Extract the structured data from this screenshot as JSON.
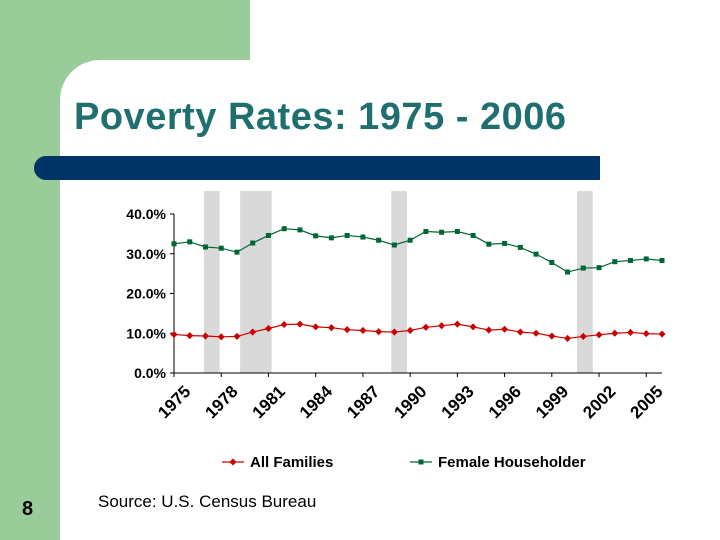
{
  "slide": {
    "title": "Poverty Rates: 1975 - 2006",
    "number": "8",
    "source": "Source: U.S. Census Bureau"
  },
  "chart_data": {
    "type": "line",
    "title": "Poverty Rates: 1975 - 2006",
    "xlabel": "",
    "ylabel": "",
    "ylim": [
      0,
      40
    ],
    "yticks": [
      "0.0%",
      "10.0%",
      "20.0%",
      "30.0%",
      "40.0%"
    ],
    "yticks_values": [
      0,
      10,
      20,
      30,
      40
    ],
    "xtick_labels": [
      "1975",
      "1978",
      "1981",
      "1984",
      "1987",
      "1990",
      "1993",
      "1996",
      "1999",
      "2002",
      "2005"
    ],
    "x": [
      1975,
      1976,
      1977,
      1978,
      1979,
      1980,
      1981,
      1982,
      1983,
      1984,
      1985,
      1986,
      1987,
      1988,
      1989,
      1990,
      1991,
      1992,
      1993,
      1994,
      1995,
      1996,
      1997,
      1998,
      1999,
      2000,
      2001,
      2002,
      2003,
      2004,
      2005,
      2006
    ],
    "series": [
      {
        "name": "All Families",
        "color": "#cc0000",
        "values": [
          9.7,
          9.4,
          9.3,
          9.1,
          9.2,
          10.3,
          11.2,
          12.2,
          12.3,
          11.6,
          11.4,
          10.9,
          10.7,
          10.4,
          10.3,
          10.7,
          11.5,
          11.9,
          12.3,
          11.6,
          10.8,
          11.0,
          10.3,
          10.0,
          9.3,
          8.7,
          9.2,
          9.6,
          10.0,
          10.2,
          9.9,
          9.8
        ]
      },
      {
        "name": "Female Householder",
        "color": "#006633",
        "values": [
          32.5,
          33.0,
          31.7,
          31.4,
          30.4,
          32.7,
          34.6,
          36.3,
          36.0,
          34.5,
          34.0,
          34.6,
          34.2,
          33.4,
          32.2,
          33.4,
          35.6,
          35.4,
          35.6,
          34.6,
          32.4,
          32.6,
          31.6,
          29.9,
          27.8,
          25.4,
          26.4,
          26.5,
          28.0,
          28.3,
          28.7,
          28.3
        ]
      }
    ],
    "recession_bands": [
      [
        1976.9,
        1977.9
      ],
      [
        1979.2,
        1981.2
      ],
      [
        1988.8,
        1989.8
      ],
      [
        2000.6,
        2001.6
      ]
    ],
    "colors": {
      "band": "#d9d9d9",
      "axis": "#000000"
    },
    "legend": {
      "position": "bottom"
    }
  }
}
